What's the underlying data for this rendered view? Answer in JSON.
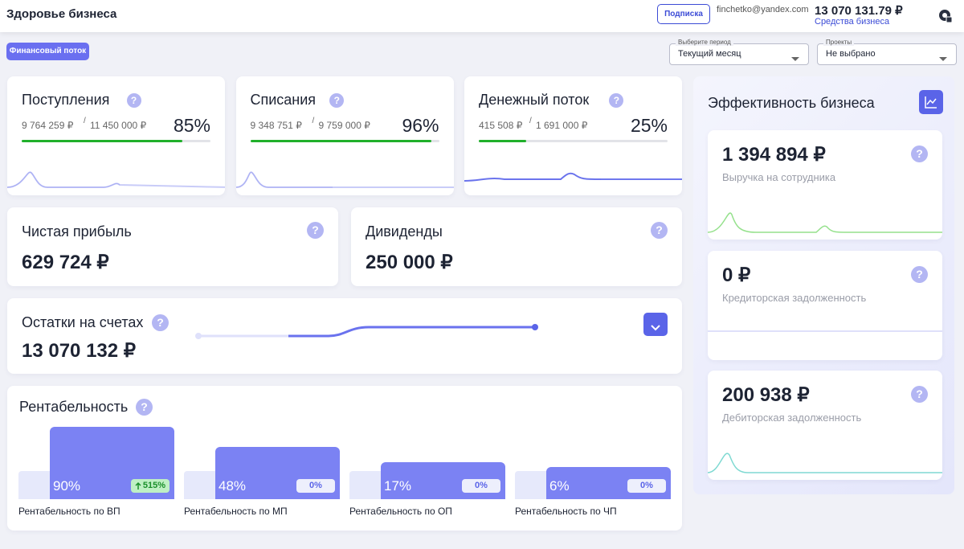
{
  "header": {
    "title": "Здоровье бизнеса",
    "subscribe": "Подписка",
    "email": "finchetko@yandex.com",
    "balance": "13 070 131.79 ₽",
    "balance_label": "Средства бизнеса"
  },
  "help_icon": "?",
  "toolbar": {
    "tab": "Финансовый поток",
    "filters": [
      {
        "label": "Выберите период",
        "value": "Текущий месяц"
      },
      {
        "label": "Проекты",
        "value": "Не выбрано"
      }
    ]
  },
  "flow_cards": [
    {
      "title": "Поступления",
      "actual": "9 764 259 ₽",
      "separator": "/",
      "plan": "11 450 000 ₽",
      "progress": {
        "value": 85,
        "label": "85%"
      }
    },
    {
      "title": "Списания",
      "actual": "9 348 751 ₽",
      "separator": "/",
      "plan": "9 759 000 ₽",
      "progress": {
        "value": 96,
        "label": "96%"
      }
    },
    {
      "title": "Денежный поток",
      "actual": "415 508 ₽",
      "separator": "/",
      "plan": "1 691 000 ₽",
      "progress": {
        "value": 25,
        "label": "25%"
      }
    }
  ],
  "summary_cards": [
    {
      "title": "Чистая прибыль",
      "value": "629 724 ₽"
    },
    {
      "title": "Дивиденды",
      "value": "250 000 ₽"
    }
  ],
  "accounts": {
    "title": "Остатки на счетах",
    "value": "13 070 132 ₽"
  },
  "profitability": {
    "title": "Рентабельность",
    "items": [
      {
        "value": 90,
        "label": "90%",
        "change": "515%",
        "name": "Рентабельность по ВП"
      },
      {
        "value": 48,
        "label": "48%",
        "change": "0%",
        "name": "Рентабельность по МП"
      },
      {
        "value": 17,
        "label": "17%",
        "change": "0%",
        "name": "Рентабельность по ОП"
      },
      {
        "value": 6,
        "label": "6%",
        "change": "0%",
        "name": "Рентабельность по ЧП"
      }
    ]
  },
  "efficiency": {
    "title": "Эффективность бизнеса",
    "metrics": [
      {
        "value": "1 394 894 ₽",
        "label": "Выручка на сотрудника"
      },
      {
        "value": "0 ₽",
        "label": "Кредиторская задолженность"
      },
      {
        "value": "200 938 ₽",
        "label": "Дебиторская задолженность"
      }
    ]
  }
}
